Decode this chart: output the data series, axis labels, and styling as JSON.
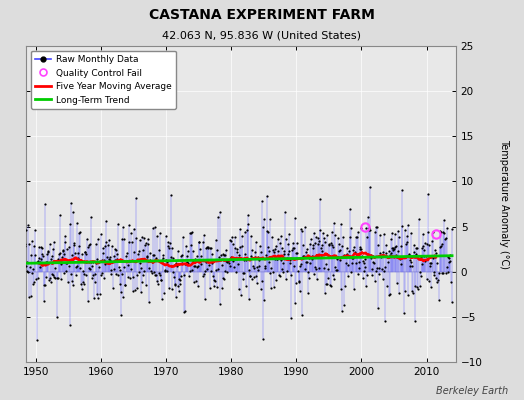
{
  "title": "CASTANA EXPERIMENT FARM",
  "subtitle": "42.063 N, 95.836 W (United States)",
  "ylabel": "Temperature Anomaly (°C)",
  "attribution": "Berkeley Earth",
  "year_start": 1948,
  "year_end": 2014,
  "ylim": [
    -10,
    25
  ],
  "yticks": [
    -10,
    -5,
    0,
    5,
    10,
    15,
    20,
    25
  ],
  "xticks": [
    1950,
    1960,
    1970,
    1980,
    1990,
    2000,
    2010
  ],
  "bg_color": "#dddddd",
  "plot_bg_color": "#e8e8e8",
  "raw_line_color": "#4444ff",
  "raw_marker_color": "#000000",
  "moving_avg_color": "#ff0000",
  "trend_color": "#00cc00",
  "qc_color": "#ff44ff",
  "seed": 17
}
